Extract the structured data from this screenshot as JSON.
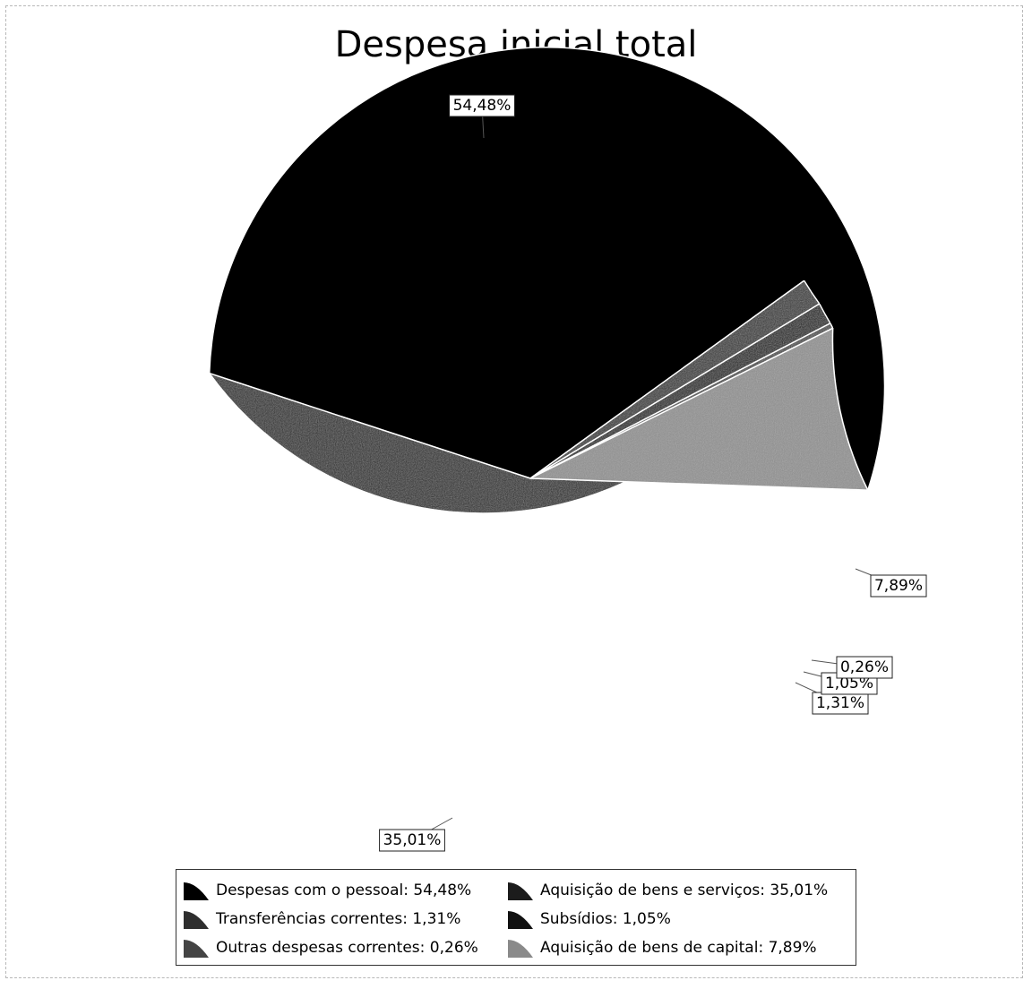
{
  "chart_data": {
    "type": "pie",
    "title": "Despesa inicial total",
    "slices": [
      {
        "label": "Despesas com o pessoal",
        "value": 54.48,
        "display": "54,48%",
        "color": "#000000",
        "legend_text": "Despesas com o pessoal: 54,48%"
      },
      {
        "label": "Aquisição  de bens e serviços",
        "value": 35.01,
        "display": "35,01%",
        "color": "#1c1c1c",
        "legend_text": "Aquisição  de bens e serviços: 35,01%"
      },
      {
        "label": "Transferências correntes",
        "value": 1.31,
        "display": "1,31%",
        "color": "#2e2e2e",
        "legend_text": "Transferências correntes: 1,31%"
      },
      {
        "label": "Subsídios",
        "value": 1.05,
        "display": "1,05%",
        "color": "#111111",
        "legend_text": "Subsídios: 1,05%"
      },
      {
        "label": "Outras despesas correntes",
        "value": 0.26,
        "display": "0,26%",
        "color": "#444444",
        "legend_text": "Outras despesas correntes: 0,26%"
      },
      {
        "label": "Aquisição de bens de capital",
        "value": 7.89,
        "display": "7,89%",
        "color": "#8a8a8a",
        "legend_text": "Aquisição de bens de capital: 7,89%"
      }
    ],
    "legend_placement": "bottom"
  }
}
